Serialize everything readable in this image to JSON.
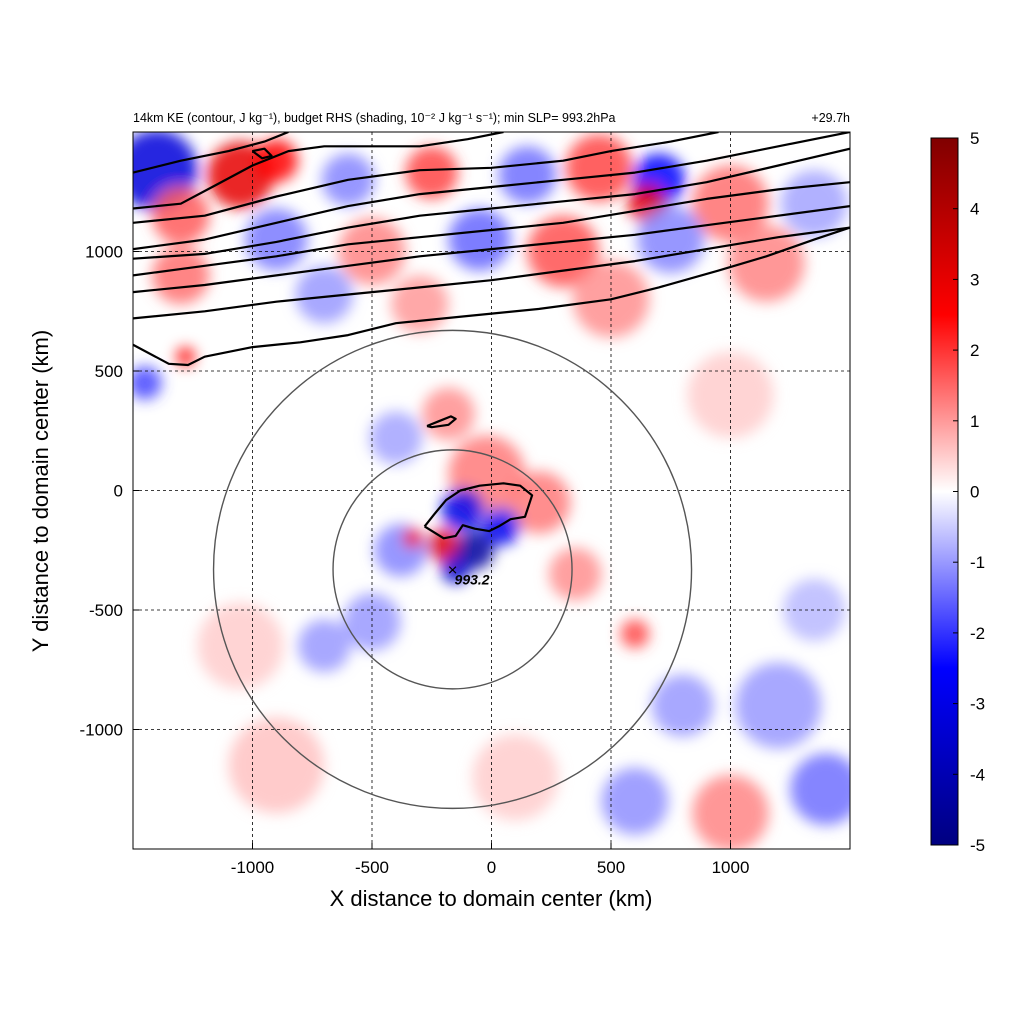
{
  "chart_data": {
    "type": "heatmap",
    "title_left": "14km KE (contour, J kg⁻¹), budget RHS (shading, 10⁻² J kg⁻¹ s⁻¹); min SLP= 993.2hPa",
    "title_right": "+29.7h",
    "xlabel": "X distance to domain center (km)",
    "ylabel": "Y distance to domain center (km)",
    "xlim": [
      -1500,
      1500
    ],
    "ylim": [
      -1500,
      1500
    ],
    "xticks": [
      -1000,
      -500,
      0,
      500,
      1000
    ],
    "yticks": [
      -1000,
      -500,
      0,
      500,
      1000
    ],
    "grid": true,
    "colorbar": {
      "range": [
        -5,
        5
      ],
      "ticks": [
        "5",
        "4",
        "3",
        "2",
        "1",
        "0",
        "-1",
        "-2",
        "-3",
        "-4",
        "-5"
      ],
      "colors": [
        "#000080",
        "#0000ff",
        "#ffffff",
        "#ff0000",
        "#800000"
      ]
    },
    "storm_center": {
      "x": -163,
      "y": -330,
      "label": "993.2"
    },
    "range_rings_km": [
      500,
      1000
    ],
    "shading_blobs": [
      {
        "x": -1400,
        "y": 1340,
        "r": 170,
        "v": -3.2
      },
      {
        "x": -1050,
        "y": 1320,
        "r": 140,
        "v": 3.0
      },
      {
        "x": -900,
        "y": 1380,
        "r": 90,
        "v": 2.5
      },
      {
        "x": -1300,
        "y": 1150,
        "r": 120,
        "v": 1.6
      },
      {
        "x": -600,
        "y": 1300,
        "r": 110,
        "v": -1.2
      },
      {
        "x": -250,
        "y": 1330,
        "r": 110,
        "v": 1.8
      },
      {
        "x": 150,
        "y": 1320,
        "r": 120,
        "v": -1.4
      },
      {
        "x": 450,
        "y": 1350,
        "r": 140,
        "v": 1.8
      },
      {
        "x": 700,
        "y": 1300,
        "r": 110,
        "v": -2.5
      },
      {
        "x": 650,
        "y": 1200,
        "r": 80,
        "v": 3.0
      },
      {
        "x": 1000,
        "y": 1200,
        "r": 160,
        "v": 1.4
      },
      {
        "x": 1350,
        "y": 1200,
        "r": 140,
        "v": -0.9
      },
      {
        "x": -900,
        "y": 1050,
        "r": 130,
        "v": -1.3
      },
      {
        "x": -500,
        "y": 1000,
        "r": 140,
        "v": 1.2
      },
      {
        "x": -50,
        "y": 1050,
        "r": 130,
        "v": -1.5
      },
      {
        "x": 300,
        "y": 1000,
        "r": 150,
        "v": 1.7
      },
      {
        "x": 750,
        "y": 1050,
        "r": 140,
        "v": -1.2
      },
      {
        "x": 1150,
        "y": 950,
        "r": 160,
        "v": 1.2
      },
      {
        "x": -1300,
        "y": 900,
        "r": 120,
        "v": 1.4
      },
      {
        "x": -700,
        "y": 820,
        "r": 120,
        "v": -1.0
      },
      {
        "x": -300,
        "y": 780,
        "r": 120,
        "v": 1.0
      },
      {
        "x": 500,
        "y": 800,
        "r": 160,
        "v": 1.1
      },
      {
        "x": -1280,
        "y": 560,
        "r": 40,
        "v": 2.5
      },
      {
        "x": -1450,
        "y": 450,
        "r": 70,
        "v": -1.8
      },
      {
        "x": -180,
        "y": 320,
        "r": 110,
        "v": 1.1
      },
      {
        "x": -400,
        "y": 220,
        "r": 110,
        "v": -0.9
      },
      {
        "x": -20,
        "y": 70,
        "r": 160,
        "v": 1.3
      },
      {
        "x": 200,
        "y": -50,
        "r": 130,
        "v": 1.3
      },
      {
        "x": 350,
        "y": -350,
        "r": 110,
        "v": 1.1
      },
      {
        "x": -380,
        "y": -250,
        "r": 110,
        "v": -1.2
      },
      {
        "x": -120,
        "y": -80,
        "r": 90,
        "v": -3.0
      },
      {
        "x": 40,
        "y": -150,
        "r": 80,
        "v": -2.8
      },
      {
        "x": -200,
        "y": -230,
        "r": 70,
        "v": 3.2
      },
      {
        "x": -70,
        "y": -250,
        "r": 80,
        "v": -4.4
      },
      {
        "x": -150,
        "y": -330,
        "r": 60,
        "v": -3.5
      },
      {
        "x": -330,
        "y": -200,
        "r": 40,
        "v": 2.6
      },
      {
        "x": -500,
        "y": -550,
        "r": 120,
        "v": -1.0
      },
      {
        "x": -700,
        "y": -650,
        "r": 110,
        "v": -1.0
      },
      {
        "x": -1050,
        "y": -650,
        "r": 180,
        "v": 0.5
      },
      {
        "x": -900,
        "y": -1150,
        "r": 200,
        "v": 0.6
      },
      {
        "x": 600,
        "y": -600,
        "r": 60,
        "v": 1.8
      },
      {
        "x": 800,
        "y": -900,
        "r": 130,
        "v": -1.0
      },
      {
        "x": 1200,
        "y": -900,
        "r": 180,
        "v": -1.0
      },
      {
        "x": 1400,
        "y": -1250,
        "r": 150,
        "v": -1.4
      },
      {
        "x": 1000,
        "y": -1350,
        "r": 160,
        "v": 1.2
      },
      {
        "x": 600,
        "y": -1300,
        "r": 140,
        "v": -1.1
      },
      {
        "x": 1350,
        "y": -500,
        "r": 130,
        "v": -0.7
      },
      {
        "x": 100,
        "y": -1200,
        "r": 180,
        "v": 0.5
      },
      {
        "x": 1000,
        "y": 400,
        "r": 180,
        "v": 0.5
      }
    ],
    "ke_contours": [
      [
        [
          -1500,
          1330
        ],
        [
          -1300,
          1380
        ],
        [
          -1100,
          1420
        ],
        [
          -950,
          1460
        ],
        [
          -850,
          1500
        ]
      ],
      [
        [
          -1500,
          1180
        ],
        [
          -1300,
          1200
        ],
        [
          -1150,
          1280
        ],
        [
          -1000,
          1360
        ],
        [
          -850,
          1420
        ],
        [
          -700,
          1440
        ],
        [
          -500,
          1440
        ],
        [
          -300,
          1440
        ],
        [
          -100,
          1470
        ],
        [
          50,
          1500
        ]
      ],
      [
        [
          -1500,
          1120
        ],
        [
          -1200,
          1150
        ],
        [
          -900,
          1230
        ],
        [
          -600,
          1300
        ],
        [
          -300,
          1340
        ],
        [
          0,
          1350
        ],
        [
          300,
          1380
        ],
        [
          500,
          1420
        ],
        [
          750,
          1460
        ],
        [
          950,
          1500
        ]
      ],
      [
        [
          -1500,
          1010
        ],
        [
          -1200,
          1050
        ],
        [
          -900,
          1120
        ],
        [
          -600,
          1190
        ],
        [
          -300,
          1240
        ],
        [
          0,
          1270
        ],
        [
          300,
          1300
        ],
        [
          600,
          1330
        ],
        [
          900,
          1380
        ],
        [
          1200,
          1440
        ],
        [
          1500,
          1500
        ]
      ],
      [
        [
          -1500,
          970
        ],
        [
          -1200,
          990
        ],
        [
          -900,
          1040
        ],
        [
          -600,
          1100
        ],
        [
          -300,
          1150
        ],
        [
          0,
          1180
        ],
        [
          300,
          1210
        ],
        [
          600,
          1240
        ],
        [
          900,
          1290
        ],
        [
          1200,
          1360
        ],
        [
          1500,
          1430
        ]
      ],
      [
        [
          -1500,
          900
        ],
        [
          -1200,
          940
        ],
        [
          -900,
          980
        ],
        [
          -600,
          1030
        ],
        [
          -300,
          1060
        ],
        [
          0,
          1090
        ],
        [
          300,
          1120
        ],
        [
          600,
          1170
        ],
        [
          900,
          1220
        ],
        [
          1200,
          1260
        ],
        [
          1500,
          1290
        ]
      ],
      [
        [
          -1500,
          830
        ],
        [
          -1200,
          860
        ],
        [
          -900,
          900
        ],
        [
          -600,
          940
        ],
        [
          -300,
          980
        ],
        [
          0,
          1010
        ],
        [
          300,
          1040
        ],
        [
          600,
          1070
        ],
        [
          900,
          1110
        ],
        [
          1200,
          1150
        ],
        [
          1500,
          1190
        ]
      ],
      [
        [
          -1500,
          720
        ],
        [
          -1200,
          750
        ],
        [
          -900,
          790
        ],
        [
          -600,
          820
        ],
        [
          -300,
          850
        ],
        [
          0,
          880
        ],
        [
          300,
          920
        ],
        [
          600,
          960
        ],
        [
          900,
          1010
        ],
        [
          1200,
          1060
        ],
        [
          1500,
          1100
        ]
      ],
      [
        [
          -1500,
          610
        ],
        [
          -1350,
          530
        ],
        [
          -1270,
          525
        ],
        [
          -1200,
          560
        ],
        [
          -1000,
          600
        ],
        [
          -800,
          620
        ],
        [
          -600,
          650
        ],
        [
          -400,
          700
        ],
        [
          -100,
          730
        ],
        [
          200,
          760
        ],
        [
          500,
          800
        ],
        [
          700,
          850
        ],
        [
          950,
          920
        ],
        [
          1150,
          980
        ],
        [
          1350,
          1050
        ],
        [
          1500,
          1100
        ]
      ],
      [
        [
          -270,
          270
        ],
        [
          -220,
          290
        ],
        [
          -170,
          310
        ],
        [
          -150,
          300
        ],
        [
          -180,
          275
        ],
        [
          -250,
          265
        ],
        [
          -270,
          270
        ]
      ],
      [
        [
          -280,
          -150
        ],
        [
          -240,
          -100
        ],
        [
          -190,
          -40
        ],
        [
          -130,
          0
        ],
        [
          -50,
          20
        ],
        [
          50,
          30
        ],
        [
          120,
          20
        ],
        [
          170,
          -20
        ],
        [
          140,
          -110
        ],
        [
          80,
          -120
        ],
        [
          30,
          -150
        ],
        [
          -10,
          -170
        ],
        [
          -70,
          -160
        ],
        [
          -120,
          -145
        ],
        [
          -150,
          -190
        ],
        [
          -200,
          -200
        ],
        [
          -280,
          -150
        ]
      ],
      [
        [
          -1000,
          1420
        ],
        [
          -960,
          1390
        ],
        [
          -920,
          1400
        ],
        [
          -950,
          1430
        ],
        [
          -1000,
          1420
        ]
      ]
    ]
  }
}
